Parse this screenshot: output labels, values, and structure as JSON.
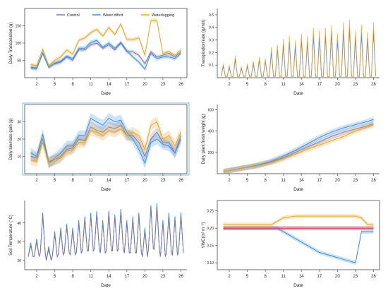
{
  "colors": {
    "control": "#7b79a8",
    "water_deficit": "#3b8fe0",
    "waterlogging": "#e8a325",
    "red": "#e0474c"
  },
  "legend": [
    {
      "name": "Control",
      "color": "#7b79a8"
    },
    {
      "name": "Water dificit",
      "color": "#3b8fe0"
    },
    {
      "name": "Waterlogging",
      "color": "#e8a325"
    }
  ],
  "chart_data": [
    {
      "id": "daily-transpiration",
      "type": "line",
      "ylabel": "Daily Transpiration (g)",
      "xlabel": "Date",
      "xticks": [
        2,
        5,
        8,
        11,
        14,
        17,
        20,
        23,
        26
      ],
      "yticks": [
        50,
        100,
        150
      ],
      "ylim": [
        0,
        200
      ],
      "xlim": [
        0,
        27
      ],
      "x": [
        1,
        2,
        3,
        4,
        5,
        6,
        7,
        8,
        9,
        10,
        11,
        12,
        13,
        14,
        15,
        16,
        17,
        18,
        19,
        20,
        21,
        22,
        23,
        24,
        25,
        26
      ],
      "series": [
        {
          "name": "Control",
          "values": [
            30,
            28,
            70,
            32,
            40,
            45,
            60,
            50,
            80,
            80,
            95,
            100,
            85,
            95,
            80,
            100,
            75,
            75,
            65,
            40,
            75,
            60,
            65,
            70,
            60,
            75
          ]
        },
        {
          "name": "Water dificit",
          "values": [
            28,
            26,
            72,
            30,
            42,
            48,
            62,
            55,
            85,
            85,
            102,
            108,
            88,
            100,
            85,
            102,
            78,
            60,
            45,
            25,
            70,
            55,
            60,
            60,
            55,
            70
          ]
        },
        {
          "name": "Waterlogging",
          "values": [
            38,
            35,
            82,
            35,
            50,
            60,
            80,
            68,
            108,
            115,
            130,
            140,
            120,
            145,
            125,
            155,
            110,
            110,
            115,
            65,
            165,
            165,
            70,
            75,
            65,
            80
          ]
        }
      ]
    },
    {
      "id": "transpiration-rate",
      "type": "line",
      "ylabel": "Transpiration rate (g/min)",
      "xlabel": "Date",
      "xticks": [
        2,
        5,
        8,
        11,
        14,
        17,
        20,
        23,
        26
      ],
      "yticks": [
        0.1,
        0.2,
        0.3,
        0.4,
        0.5
      ],
      "ylim": [
        0,
        0.55
      ],
      "xlim": [
        0,
        27
      ],
      "x": [
        1,
        2,
        3,
        4,
        5,
        6,
        7,
        8,
        9,
        10,
        11,
        12,
        13,
        14,
        15,
        16,
        17,
        18,
        19,
        20,
        21,
        22,
        23,
        24,
        25,
        26
      ],
      "daily_peaks": [
        0.1,
        0.09,
        0.16,
        0.08,
        0.1,
        0.12,
        0.15,
        0.14,
        0.22,
        0.24,
        0.28,
        0.3,
        0.27,
        0.32,
        0.3,
        0.36,
        0.34,
        0.36,
        0.38,
        0.32,
        0.4,
        0.42,
        0.34,
        0.38,
        0.33,
        0.4
      ]
    },
    {
      "id": "daily-biomass-gain",
      "type": "line",
      "ylabel": "Daily biomass gain (g)",
      "xlabel": "Date",
      "xticks": [
        2,
        5,
        8,
        11,
        14,
        17,
        20,
        23,
        26
      ],
      "yticks": [
        10,
        20,
        30
      ],
      "ylim": [
        0,
        40
      ],
      "xlim": [
        0,
        27
      ],
      "x": [
        1,
        2,
        3,
        4,
        5,
        6,
        7,
        8,
        9,
        10,
        11,
        12,
        13,
        14,
        15,
        16,
        17,
        18,
        19,
        20,
        21,
        22,
        23,
        24,
        25,
        26
      ],
      "series": [
        {
          "name": "Control",
          "values": [
            10,
            9,
            20,
            7,
            8,
            10,
            14,
            15,
            20,
            19,
            27,
            25,
            24,
            27,
            26,
            28,
            22,
            22,
            18,
            10,
            20,
            24,
            18,
            18,
            12,
            22
          ]
        },
        {
          "name": "Water dificit",
          "values": [
            12,
            10,
            23,
            6,
            9,
            12,
            16,
            16,
            22,
            22,
            32,
            30,
            28,
            32,
            30,
            31,
            24,
            20,
            14,
            6,
            18,
            20,
            17,
            16,
            12,
            20
          ]
        },
        {
          "name": "Waterlogging",
          "values": [
            8,
            7,
            18,
            6,
            8,
            9,
            13,
            14,
            18,
            18,
            25,
            24,
            22,
            25,
            24,
            26,
            22,
            24,
            22,
            14,
            28,
            30,
            20,
            22,
            16,
            24
          ]
        }
      ]
    },
    {
      "id": "daily-plant-fresh-weight",
      "type": "line",
      "ylabel": "Daily plant fresh weight (g)",
      "xlabel": "Date",
      "xticks": [
        2,
        5,
        8,
        11,
        14,
        17,
        20,
        23,
        26
      ],
      "yticks": [
        200,
        400,
        600
      ],
      "ylim": [
        0,
        650
      ],
      "xlim": [
        0,
        27
      ],
      "x": [
        1,
        3,
        5,
        7,
        9,
        11,
        13,
        15,
        17,
        19,
        21,
        23,
        25,
        26
      ],
      "series": [
        {
          "name": "Control",
          "values": [
            20,
            40,
            60,
            80,
            110,
            150,
            200,
            250,
            300,
            350,
            390,
            420,
            450,
            470
          ]
        },
        {
          "name": "Water dificit",
          "values": [
            20,
            42,
            62,
            85,
            118,
            165,
            220,
            280,
            340,
            390,
            430,
            460,
            490,
            510
          ]
        },
        {
          "name": "Waterlogging",
          "values": [
            20,
            40,
            58,
            78,
            105,
            140,
            185,
            230,
            270,
            310,
            350,
            400,
            440,
            460
          ]
        }
      ]
    },
    {
      "id": "soil-temperature",
      "type": "line",
      "ylabel": "Soil Temperature (°C)",
      "xlabel": "Date",
      "xticks": [
        2,
        5,
        8,
        11,
        14,
        17,
        20,
        23,
        26
      ],
      "yticks": [
        20,
        30,
        40
      ],
      "ylim": [
        15,
        52
      ],
      "xlim": [
        0,
        27
      ],
      "x": [
        1,
        2,
        3,
        4,
        5,
        6,
        7,
        8,
        9,
        10,
        11,
        12,
        13,
        14,
        15,
        16,
        17,
        18,
        19,
        20,
        21,
        22,
        23,
        24,
        25,
        26
      ],
      "daily_max": [
        28,
        30,
        44,
        26,
        34,
        36,
        38,
        36,
        40,
        42,
        44,
        45,
        40,
        45,
        43,
        46,
        40,
        42,
        44,
        36,
        48,
        49,
        40,
        44,
        42,
        44
      ],
      "daily_min": [
        22,
        22,
        24,
        20,
        22,
        23,
        24,
        23,
        24,
        25,
        25,
        26,
        24,
        25,
        25,
        26,
        24,
        24,
        24,
        22,
        26,
        26,
        22,
        24,
        23,
        24
      ]
    },
    {
      "id": "vwc",
      "type": "line",
      "ylabel": "VWC(m³ m⁻³)",
      "xlabel": "Date",
      "xticks": [
        2,
        5,
        8,
        11,
        14,
        17,
        20,
        23,
        26
      ],
      "yticks": [
        0.1,
        0.15,
        0.2,
        0.25
      ],
      "ytick_labels": [
        "0.10",
        "0.15",
        "0.20",
        "0.25"
      ],
      "ylim": [
        0.08,
        0.28
      ],
      "xlim": [
        0,
        27
      ],
      "x": [
        1,
        3,
        5,
        7,
        9,
        10,
        11,
        13,
        15,
        17,
        19,
        20,
        21,
        22,
        23,
        24,
        25,
        26
      ],
      "series": [
        {
          "name": "Control",
          "values": [
            0.2,
            0.2,
            0.2,
            0.2,
            0.2,
            0.2,
            0.2,
            0.2,
            0.2,
            0.2,
            0.2,
            0.2,
            0.2,
            0.2,
            0.2,
            0.2,
            0.2,
            0.2
          ]
        },
        {
          "name": "Water dificit",
          "values": [
            0.2,
            0.2,
            0.2,
            0.2,
            0.2,
            0.2,
            0.19,
            0.17,
            0.15,
            0.13,
            0.12,
            0.115,
            0.11,
            0.105,
            0.1,
            0.19,
            0.19,
            0.19
          ]
        },
        {
          "name": "Waterlogging",
          "values": [
            0.21,
            0.21,
            0.21,
            0.21,
            0.21,
            0.22,
            0.23,
            0.235,
            0.235,
            0.235,
            0.235,
            0.235,
            0.235,
            0.235,
            0.235,
            0.23,
            0.21,
            0.21
          ]
        },
        {
          "name": "",
          "values": [
            0.2,
            0.2,
            0.2,
            0.2,
            0.2,
            0.2,
            0.2,
            0.2,
            0.2,
            0.2,
            0.2,
            0.2,
            0.2,
            0.2,
            0.2,
            0.2,
            0.2,
            0.2
          ]
        }
      ]
    }
  ]
}
